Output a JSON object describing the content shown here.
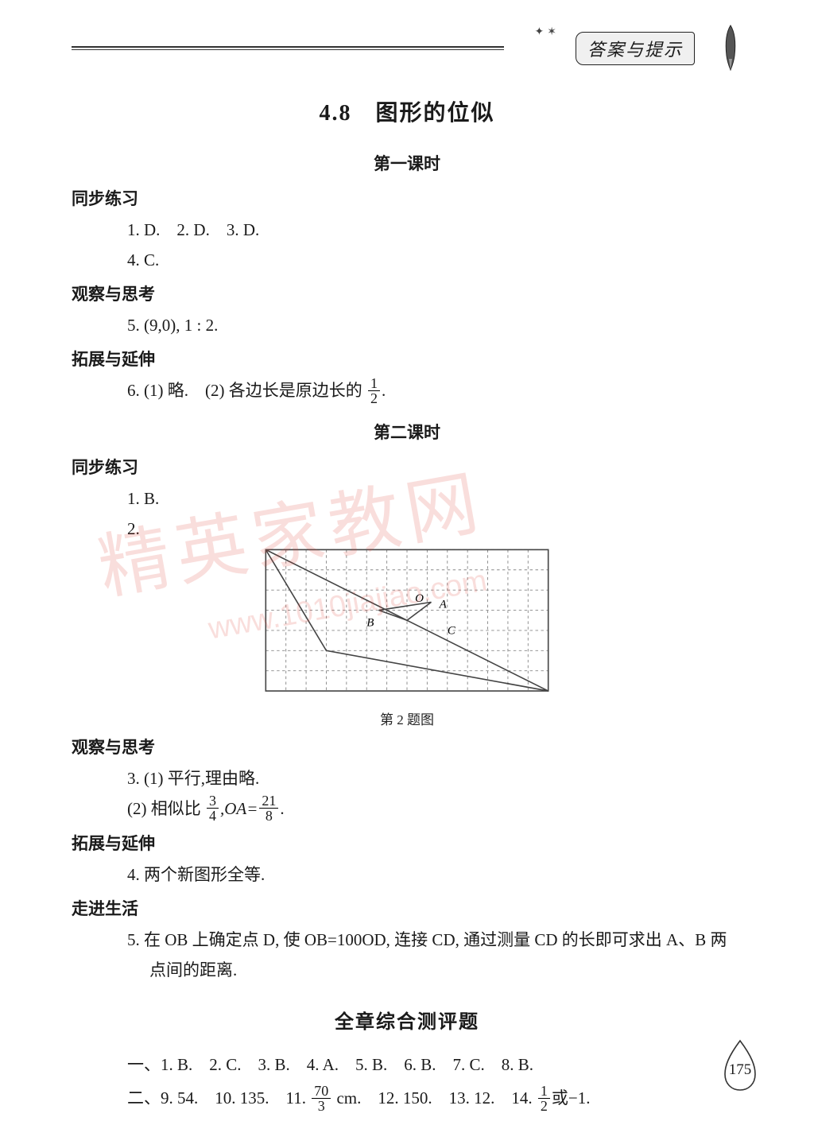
{
  "header": {
    "tab_label": "答案与提示",
    "stars": "✦✶"
  },
  "watermark_main": "精英家教网",
  "watermark_url": "www.1010jiajiao.com",
  "chapter_title": "4.8　图形的位似",
  "lesson1_title": "第一课时",
  "lesson2_title": "第二课时",
  "sections": {
    "sync_practice": "同步练习",
    "observe_think": "观察与思考",
    "extend": "拓展与延伸",
    "real_life": "走进生活"
  },
  "l1": {
    "sync_line1": "1. D.　2. D.　3. D.",
    "sync_line2": "4. C.",
    "observe_line": "5. (9,0), 1 : 2.",
    "extend_prefix": "6. (1) 略.　(2) 各边长是原边长的",
    "extend_frac_n": "1",
    "extend_frac_d": "2",
    "extend_suffix": "."
  },
  "l2": {
    "sync_line1": "1. B.",
    "sync_label2": "2.",
    "grid_caption": "第 2 题图",
    "observe_line1": "3. (1) 平行,理由略.",
    "observe_line2_prefix": "(2) 相似比",
    "ratio_n": "3",
    "ratio_d": "4",
    "oa_prefix": ",OA=",
    "oa_n": "21",
    "oa_d": "8",
    "observe_line2_suffix": ".",
    "extend_line": "4. 两个新图形全等.",
    "life_line1": "5. 在 OB 上确定点 D, 使 OB=100OD, 连接 CD, 通过测量 CD 的长即可求出 A、B 两",
    "life_line2": "点间的距离."
  },
  "comprehensive_title": "全章综合测评题",
  "comp": {
    "row1": "一、1. B.　2. C.　3. B.　4. A.　5. B.　6. B.　7. C.　8. B.",
    "row2_a": "二、9. 54.　10. 135.　11. ",
    "row2_frac_n": "70",
    "row2_frac_d": "3",
    "row2_b": " cm.　12. 150.　13. 12.　14. ",
    "row2_frac2_n": "1",
    "row2_frac2_d": "2",
    "row2_c": "或−1."
  },
  "page_number": "175",
  "grid_fig": {
    "cols": 14,
    "rows": 7,
    "cell": 22,
    "outline_color": "#444",
    "dash_color": "#888",
    "labels": {
      "O": "O",
      "A": "A",
      "B": "B",
      "C": "C"
    },
    "big_triangle": [
      [
        0,
        0
      ],
      [
        14,
        7
      ],
      [
        3,
        5
      ]
    ],
    "small_triangle": [
      [
        7,
        3.5
      ],
      [
        8.2,
        2.6
      ],
      [
        5.6,
        3
      ]
    ],
    "O_pos": [
      7.4,
      2.4
    ],
    "A_pos": [
      8.6,
      2.7
    ],
    "B_pos": [
      5.0,
      3.6
    ],
    "C_pos": [
      9.0,
      4.0
    ]
  },
  "colors": {
    "text": "#1a1a1a",
    "watermark": "rgba(220,70,60,0.18)",
    "header_bg": "#f0f0f0"
  }
}
